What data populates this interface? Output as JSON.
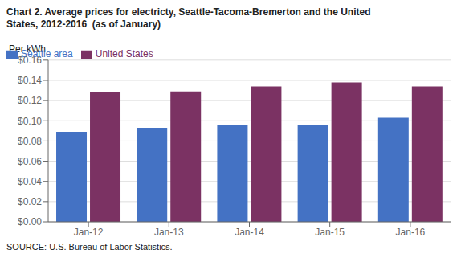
{
  "chart_data": {
    "type": "bar",
    "title": "Chart 2. Average prices for electricty, Seattle-Tacoma-Bremerton and the United",
    "subtitle": "States, 2012-2016  (as of January)",
    "y_label": "Per kWh",
    "annotations": [
      "SOURCE: U.S. Bureau of Labor Statistics."
    ],
    "categories": [
      "Jan-12",
      "Jan-13",
      "Jan-14",
      "Jan-15",
      "Jan-16"
    ],
    "series": [
      {
        "name": "Seattle area",
        "color": "#4472C4",
        "values": [
          0.089,
          0.093,
          0.096,
          0.096,
          0.103
        ]
      },
      {
        "name": "United States",
        "color": "#7B3263",
        "values": [
          0.128,
          0.129,
          0.134,
          0.138,
          0.134
        ]
      }
    ],
    "ylim": [
      0,
      0.16
    ],
    "yticks": [
      {
        "value": 0,
        "label": "$0.00"
      },
      {
        "value": 0.02,
        "label": "$0.02"
      },
      {
        "value": 0.04,
        "label": "$0.04"
      },
      {
        "value": 0.06,
        "label": "$0.06"
      },
      {
        "value": 0.08,
        "label": "$0.08"
      },
      {
        "value": 0.1,
        "label": "$0.10"
      },
      {
        "value": 0.12,
        "label": "$0.12"
      },
      {
        "value": 0.14,
        "label": "$0.14"
      },
      {
        "value": 0.16,
        "label": "$0.16"
      }
    ],
    "grid": true,
    "legend": "upper left"
  }
}
